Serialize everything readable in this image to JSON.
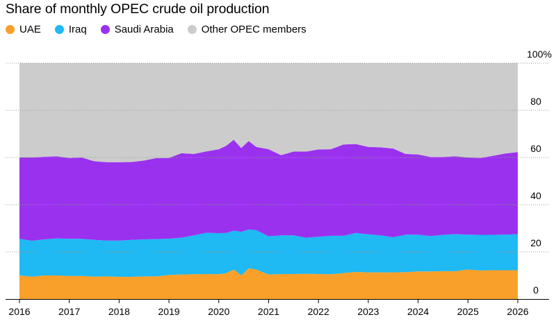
{
  "chart_data": {
    "type": "area",
    "stacked": true,
    "title": "Share of monthly OPEC crude oil production",
    "xlabel": "",
    "ylabel": "",
    "x": [
      2016.0,
      2016.25,
      2016.5,
      2016.75,
      2017.0,
      2017.25,
      2017.5,
      2017.75,
      2018.0,
      2018.25,
      2018.5,
      2018.75,
      2019.0,
      2019.25,
      2019.5,
      2019.75,
      2020.0,
      2020.15,
      2020.3,
      2020.45,
      2020.6,
      2020.75,
      2021.0,
      2021.25,
      2021.5,
      2021.75,
      2022.0,
      2022.25,
      2022.5,
      2022.75,
      2023.0,
      2023.25,
      2023.5,
      2023.75,
      2024.0,
      2024.25,
      2024.5,
      2024.75,
      2025.0,
      2025.25,
      2025.5,
      2025.75,
      2026.0
    ],
    "xticks": [
      "2016",
      "2017",
      "2018",
      "2019",
      "2020",
      "2021",
      "2022",
      "2023",
      "2024",
      "2025",
      "2026"
    ],
    "ylim": [
      0,
      100
    ],
    "yticks": [
      "0",
      "20",
      "40",
      "60",
      "80",
      "100%"
    ],
    "series": [
      {
        "name": "UAE",
        "color": "#f9a02a",
        "values": [
          10,
          9.5,
          10,
          10,
          9.8,
          9.8,
          9.5,
          9.6,
          9.4,
          9.4,
          9.6,
          9.6,
          10.2,
          10.4,
          10.5,
          10.6,
          10.5,
          11,
          12.5,
          10,
          13,
          12.5,
          10.4,
          10.6,
          10.6,
          10.7,
          10.6,
          10.5,
          11,
          11.5,
          11.3,
          11.3,
          11.3,
          11.4,
          11.7,
          11.7,
          11.8,
          11.8,
          12.5,
          12.1,
          12.2,
          12.2,
          12.2
        ]
      },
      {
        "name": "Iraq",
        "color": "#1fb9f3",
        "values": [
          15.5,
          15.2,
          15.3,
          15.7,
          15.7,
          15.7,
          15.6,
          15.2,
          15.4,
          15.7,
          15.7,
          15.8,
          15.4,
          15.6,
          16.5,
          17.5,
          17.4,
          17.0,
          16.5,
          18.5,
          16.5,
          16.7,
          16.2,
          16.4,
          16.4,
          15.3,
          15.8,
          16.3,
          15.8,
          16.5,
          16.1,
          15.7,
          14.9,
          15.9,
          15.6,
          15.0,
          15.4,
          15.7,
          14.8,
          15.1,
          15.0,
          15.1,
          15.3
        ]
      },
      {
        "name": "Saudi Arabia",
        "color": "#9a31ef",
        "values": [
          34.5,
          35.3,
          35.0,
          34.8,
          34.3,
          34.5,
          33.3,
          33.2,
          33.2,
          33.0,
          33.4,
          34.4,
          34.2,
          35.8,
          34.5,
          34.5,
          35.6,
          37.0,
          38.5,
          35.5,
          37.5,
          35.3,
          36.9,
          34.0,
          35.5,
          36.5,
          37.0,
          36.7,
          38.7,
          37.7,
          37.1,
          37.3,
          37.6,
          34.2,
          34.0,
          33.5,
          33.0,
          33.0,
          32.7,
          32.6,
          33.5,
          34.4,
          34.8
        ]
      },
      {
        "name": "Other OPEC members",
        "color": "#cccccc",
        "values": [
          40.0,
          40.0,
          39.7,
          39.5,
          40.2,
          40.0,
          41.6,
          42.0,
          42.0,
          41.9,
          41.3,
          40.2,
          40.2,
          38.2,
          38.5,
          37.4,
          36.5,
          35.0,
          32.5,
          36.0,
          33.0,
          35.5,
          36.5,
          39.0,
          37.5,
          37.5,
          36.6,
          36.5,
          34.5,
          34.3,
          35.5,
          35.7,
          36.2,
          38.5,
          38.7,
          39.8,
          39.8,
          39.5,
          40.0,
          40.2,
          39.3,
          38.3,
          37.7
        ]
      }
    ]
  }
}
